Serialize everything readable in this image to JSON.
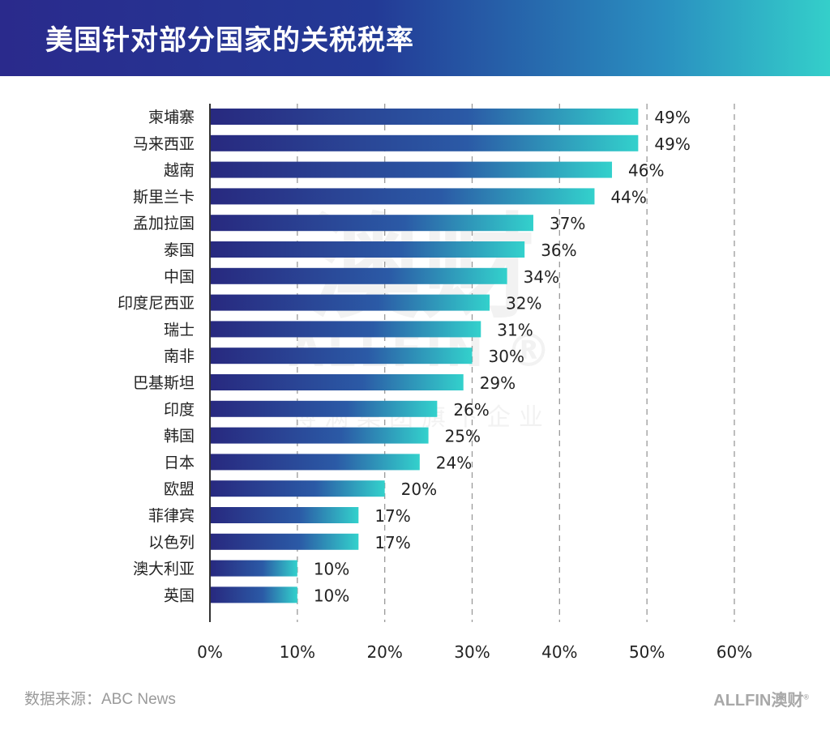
{
  "header": {
    "title": "美国针对部分国家的关税税率"
  },
  "watermark": {
    "big": "澳财",
    "brand": "ALLFIN ®",
    "sub": "博满集团旗下企业"
  },
  "footer": {
    "source": "数据来源：ABC News",
    "logo_text": "ALLFIN澳财",
    "logo_mark": "®"
  },
  "colors": {
    "bar_start": "#28297f",
    "bar_end": "#33d1cc",
    "header_start": "#2a2a8c",
    "header_end": "#34cfca",
    "grid": "#9a9a9a",
    "axis": "#333333"
  },
  "chart_data": {
    "type": "bar",
    "orientation": "horizontal",
    "categories": [
      "柬埔寨",
      "马来西亚",
      "越南",
      "斯里兰卡",
      "孟加拉国",
      "泰国",
      "中国",
      "印度尼西亚",
      "瑞士",
      "南非",
      "巴基斯坦",
      "印度",
      "韩国",
      "日本",
      "欧盟",
      "菲律宾",
      "以色列",
      "澳大利亚",
      "英国"
    ],
    "values": [
      49,
      49,
      46,
      44,
      37,
      36,
      34,
      32,
      31,
      30,
      29,
      26,
      25,
      24,
      20,
      17,
      17,
      10,
      10
    ],
    "value_labels": [
      "49%",
      "49%",
      "46%",
      "44%",
      "37%",
      "36%",
      "34%",
      "32%",
      "31%",
      "30%",
      "29%",
      "26%",
      "25%",
      "24%",
      "20%",
      "17%",
      "17%",
      "10%",
      "10%"
    ],
    "xlim": [
      0,
      60
    ],
    "xticks": [
      "0%",
      "10%",
      "20%",
      "30%",
      "40%",
      "50%",
      "60%"
    ],
    "title": "美国针对部分国家的关税税率",
    "xlabel": "",
    "ylabel": "",
    "grid": "vertical dashed"
  }
}
